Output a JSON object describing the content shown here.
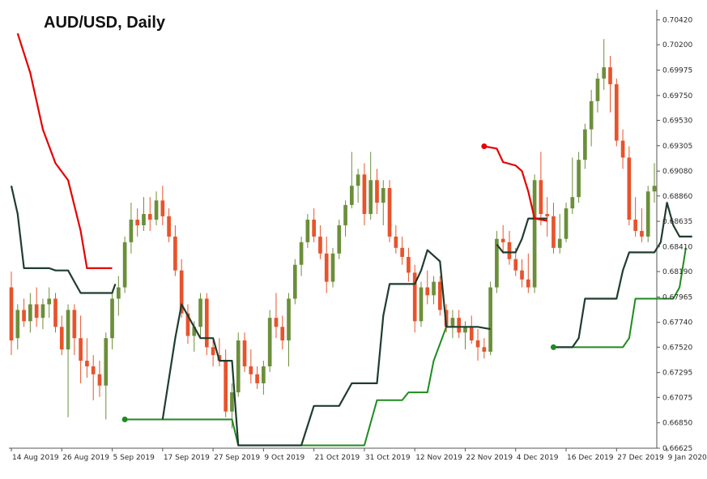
{
  "chart_data": {
    "type": "candlestick",
    "title": "AUD/USD, Daily",
    "y_ticks": [
      "0.70420",
      "0.70200",
      "0.69975",
      "0.69750",
      "0.69530",
      "0.69305",
      "0.69080",
      "0.68860",
      "0.68635",
      "0.68410",
      "0.68190",
      "0.67965",
      "0.67740",
      "0.67520",
      "0.67295",
      "0.67075",
      "0.66850",
      "0.66625"
    ],
    "x_ticks": [
      "14 Aug 2019",
      "26 Aug 2019",
      "5 Sep 2019",
      "17 Sep 2019",
      "27 Sep 2019",
      "9 Oct 2019",
      "21 Oct 2019",
      "31 Oct 2019",
      "12 Nov 2019",
      "22 Nov 2019",
      "4 Dec 2019",
      "16 Dec 2019",
      "27 Dec 2019",
      "9 Jan 2020"
    ],
    "ylim": [
      0.66625,
      0.7051
    ],
    "colors": {
      "bull": "#6b8f3a",
      "bear": "#e8532b",
      "red_line": "#e60000",
      "dark_line": "#1f3d2e",
      "green_line": "#1f8a1f",
      "axis": "#555555"
    },
    "candles": [
      [
        0.6805,
        0.6819,
        0.6745,
        0.6758
      ],
      [
        0.676,
        0.679,
        0.675,
        0.6785
      ],
      [
        0.6785,
        0.6795,
        0.677,
        0.6775
      ],
      [
        0.6775,
        0.68,
        0.6765,
        0.679
      ],
      [
        0.679,
        0.6805,
        0.677,
        0.6778
      ],
      [
        0.6778,
        0.6795,
        0.6768,
        0.679
      ],
      [
        0.679,
        0.6805,
        0.6778,
        0.6795
      ],
      [
        0.6795,
        0.68,
        0.6765,
        0.677
      ],
      [
        0.677,
        0.678,
        0.6745,
        0.675
      ],
      [
        0.675,
        0.679,
        0.669,
        0.6785
      ],
      [
        0.6785,
        0.679,
        0.6745,
        0.676
      ],
      [
        0.676,
        0.678,
        0.672,
        0.674
      ],
      [
        0.674,
        0.676,
        0.6725,
        0.6735
      ],
      [
        0.6735,
        0.6745,
        0.6705,
        0.6728
      ],
      [
        0.6728,
        0.674,
        0.6708,
        0.6718
      ],
      [
        0.6718,
        0.6765,
        0.6688,
        0.676
      ],
      [
        0.676,
        0.68,
        0.675,
        0.6795
      ],
      [
        0.6795,
        0.6815,
        0.678,
        0.6805
      ],
      [
        0.6805,
        0.685,
        0.68,
        0.6845
      ],
      [
        0.6845,
        0.688,
        0.6835,
        0.6865
      ],
      [
        0.6865,
        0.6875,
        0.685,
        0.686
      ],
      [
        0.686,
        0.6885,
        0.6855,
        0.687
      ],
      [
        0.687,
        0.6885,
        0.6855,
        0.6865
      ],
      [
        0.6865,
        0.689,
        0.686,
        0.6882
      ],
      [
        0.6882,
        0.6895,
        0.686,
        0.6868
      ],
      [
        0.6868,
        0.6875,
        0.6845,
        0.685
      ],
      [
        0.685,
        0.686,
        0.6815,
        0.682
      ],
      [
        0.682,
        0.683,
        0.6778,
        0.6782
      ],
      [
        0.6782,
        0.679,
        0.6755,
        0.6762
      ],
      [
        0.6762,
        0.6775,
        0.6748,
        0.677
      ],
      [
        0.677,
        0.68,
        0.676,
        0.6795
      ],
      [
        0.6795,
        0.68,
        0.6745,
        0.6752
      ],
      [
        0.6752,
        0.676,
        0.6735,
        0.6745
      ],
      [
        0.6745,
        0.676,
        0.6735,
        0.674
      ],
      [
        0.674,
        0.675,
        0.669,
        0.6695
      ],
      [
        0.6695,
        0.672,
        0.668,
        0.6712
      ],
      [
        0.6712,
        0.6765,
        0.6708,
        0.6758
      ],
      [
        0.6758,
        0.6765,
        0.673,
        0.6735
      ],
      [
        0.6735,
        0.675,
        0.672,
        0.6728
      ],
      [
        0.6728,
        0.6735,
        0.6715,
        0.672
      ],
      [
        0.672,
        0.674,
        0.671,
        0.6735
      ],
      [
        0.6735,
        0.6785,
        0.673,
        0.6778
      ],
      [
        0.6778,
        0.68,
        0.676,
        0.677
      ],
      [
        0.677,
        0.678,
        0.675,
        0.6758
      ],
      [
        0.6758,
        0.68,
        0.6735,
        0.6795
      ],
      [
        0.6795,
        0.683,
        0.679,
        0.6825
      ],
      [
        0.6825,
        0.685,
        0.6815,
        0.6845
      ],
      [
        0.6845,
        0.687,
        0.684,
        0.6865
      ],
      [
        0.6865,
        0.6875,
        0.6845,
        0.685
      ],
      [
        0.685,
        0.686,
        0.683,
        0.6835
      ],
      [
        0.6835,
        0.685,
        0.68,
        0.681
      ],
      [
        0.681,
        0.684,
        0.6805,
        0.6835
      ],
      [
        0.6835,
        0.6865,
        0.683,
        0.686
      ],
      [
        0.686,
        0.6882,
        0.685,
        0.6878
      ],
      [
        0.6878,
        0.6925,
        0.6875,
        0.6895
      ],
      [
        0.6895,
        0.691,
        0.688,
        0.6905
      ],
      [
        0.6905,
        0.6915,
        0.686,
        0.687
      ],
      [
        0.687,
        0.6925,
        0.6865,
        0.69
      ],
      [
        0.69,
        0.691,
        0.687,
        0.688
      ],
      [
        0.688,
        0.69,
        0.686,
        0.6893
      ],
      [
        0.6893,
        0.69,
        0.6845,
        0.685
      ],
      [
        0.685,
        0.686,
        0.6835,
        0.684
      ],
      [
        0.684,
        0.685,
        0.6825,
        0.6832
      ],
      [
        0.6832,
        0.684,
        0.681,
        0.6818
      ],
      [
        0.6818,
        0.6825,
        0.6765,
        0.6775
      ],
      [
        0.6775,
        0.681,
        0.677,
        0.6805
      ],
      [
        0.6805,
        0.682,
        0.679,
        0.6798
      ],
      [
        0.6798,
        0.6815,
        0.679,
        0.681
      ],
      [
        0.681,
        0.6815,
        0.678,
        0.6785
      ],
      [
        0.6785,
        0.679,
        0.6765,
        0.677
      ],
      [
        0.677,
        0.6785,
        0.676,
        0.6778
      ],
      [
        0.6778,
        0.6785,
        0.676,
        0.6765
      ],
      [
        0.6765,
        0.6775,
        0.675,
        0.677
      ],
      [
        0.677,
        0.678,
        0.6755,
        0.6758
      ],
      [
        0.6758,
        0.6768,
        0.674,
        0.6752
      ],
      [
        0.6752,
        0.676,
        0.6742,
        0.6748
      ],
      [
        0.6748,
        0.681,
        0.6745,
        0.6805
      ],
      [
        0.6805,
        0.6855,
        0.68,
        0.6848
      ],
      [
        0.6848,
        0.686,
        0.6835,
        0.6845
      ],
      [
        0.6845,
        0.6855,
        0.6825,
        0.683
      ],
      [
        0.683,
        0.684,
        0.6815,
        0.682
      ],
      [
        0.682,
        0.683,
        0.6805,
        0.6812
      ],
      [
        0.6812,
        0.6835,
        0.68,
        0.6805
      ],
      [
        0.6805,
        0.6905,
        0.68,
        0.69
      ],
      [
        0.69,
        0.6925,
        0.686,
        0.687
      ],
      [
        0.687,
        0.6885,
        0.685,
        0.6868
      ],
      [
        0.6868,
        0.688,
        0.6835,
        0.684
      ],
      [
        0.684,
        0.687,
        0.6835,
        0.6848
      ],
      [
        0.6848,
        0.688,
        0.6845,
        0.6875
      ],
      [
        0.6875,
        0.692,
        0.687,
        0.6885
      ],
      [
        0.6885,
        0.6925,
        0.688,
        0.6918
      ],
      [
        0.6918,
        0.695,
        0.691,
        0.6945
      ],
      [
        0.6945,
        0.698,
        0.693,
        0.697
      ],
      [
        0.697,
        0.6995,
        0.696,
        0.699
      ],
      [
        0.699,
        0.7025,
        0.698,
        0.7
      ],
      [
        0.7,
        0.701,
        0.696,
        0.6985
      ],
      [
        0.6985,
        0.699,
        0.693,
        0.6935
      ],
      [
        0.6935,
        0.6945,
        0.691,
        0.692
      ],
      [
        0.692,
        0.693,
        0.686,
        0.6865
      ],
      [
        0.6865,
        0.6885,
        0.685,
        0.6855
      ],
      [
        0.6855,
        0.6875,
        0.6845,
        0.685
      ],
      [
        0.685,
        0.6895,
        0.6845,
        0.689
      ],
      [
        0.689,
        0.6915,
        0.688,
        0.6895
      ]
    ],
    "red_line": [
      [
        1,
        0.703
      ],
      [
        3,
        0.6995
      ],
      [
        5,
        0.6945
      ],
      [
        7,
        0.6915
      ],
      [
        9,
        0.69
      ],
      [
        11,
        0.6855
      ],
      [
        12,
        0.6822
      ],
      [
        16,
        0.6822
      ],
      [
        null,
        null
      ],
      [
        75,
        0.693
      ],
      [
        77,
        0.6928
      ],
      [
        78,
        0.6916
      ],
      [
        80,
        0.6913
      ],
      [
        81,
        0.6908
      ],
      [
        82,
        0.689
      ],
      [
        83,
        0.6866
      ],
      [
        85,
        0.6864
      ]
    ],
    "dark_line": [
      [
        0,
        0.6895
      ],
      [
        1,
        0.687
      ],
      [
        2,
        0.6822
      ],
      [
        6,
        0.6822
      ],
      [
        7,
        0.682
      ],
      [
        9,
        0.682
      ],
      [
        10,
        0.681
      ],
      [
        11,
        0.68
      ],
      [
        16,
        0.68
      ],
      [
        16.5,
        0.6808
      ],
      [
        null,
        null
      ],
      [
        24,
        0.6688
      ],
      [
        26,
        0.676
      ],
      [
        27,
        0.679
      ],
      [
        29,
        0.677
      ],
      [
        30,
        0.676
      ],
      [
        32,
        0.676
      ],
      [
        33,
        0.674
      ],
      [
        35,
        0.674
      ],
      [
        36,
        0.6665
      ],
      [
        46,
        0.6665
      ],
      [
        48,
        0.67
      ],
      [
        52,
        0.67
      ],
      [
        54,
        0.672
      ],
      [
        58,
        0.672
      ],
      [
        59,
        0.678
      ],
      [
        60,
        0.6808
      ],
      [
        64,
        0.6808
      ],
      [
        65,
        0.682
      ],
      [
        66,
        0.6838
      ],
      [
        68,
        0.6828
      ],
      [
        69,
        0.677
      ],
      [
        74,
        0.677
      ],
      [
        76,
        0.6768
      ],
      [
        null,
        null
      ],
      [
        77,
        0.6843
      ],
      [
        78,
        0.6836
      ],
      [
        80,
        0.6836
      ],
      [
        81,
        0.6848
      ],
      [
        82,
        0.6866
      ],
      [
        85,
        0.6866
      ],
      [
        null,
        null
      ],
      [
        86,
        0.6752
      ],
      [
        89,
        0.6752
      ],
      [
        90,
        0.676
      ],
      [
        91,
        0.6795
      ],
      [
        96,
        0.6795
      ],
      [
        97,
        0.682
      ],
      [
        98,
        0.6836
      ],
      [
        102,
        0.6836
      ],
      [
        103,
        0.6845
      ],
      [
        104,
        0.688
      ],
      [
        105,
        0.686
      ],
      [
        106,
        0.685
      ],
      [
        108,
        0.685
      ]
    ],
    "green_line": [
      [
        18,
        0.6688
      ],
      [
        35,
        0.6688
      ],
      [
        36,
        0.6665
      ],
      [
        56,
        0.6665
      ],
      [
        58,
        0.6705
      ],
      [
        62,
        0.6705
      ],
      [
        63,
        0.6712
      ],
      [
        66,
        0.6712
      ],
      [
        67,
        0.674
      ],
      [
        69,
        0.677
      ],
      [
        null,
        null
      ],
      [
        86,
        0.6752
      ],
      [
        97,
        0.6752
      ],
      [
        98,
        0.676
      ],
      [
        99,
        0.6795
      ],
      [
        105,
        0.6795
      ],
      [
        106,
        0.6805
      ],
      [
        107,
        0.684
      ]
    ],
    "dots": [
      {
        "series": "red_line",
        "x": 75,
        "y": 0.693
      },
      {
        "series": "green_line",
        "x": 18,
        "y": 0.6688
      },
      {
        "series": "green_line",
        "x": 86,
        "y": 0.6752
      }
    ]
  }
}
